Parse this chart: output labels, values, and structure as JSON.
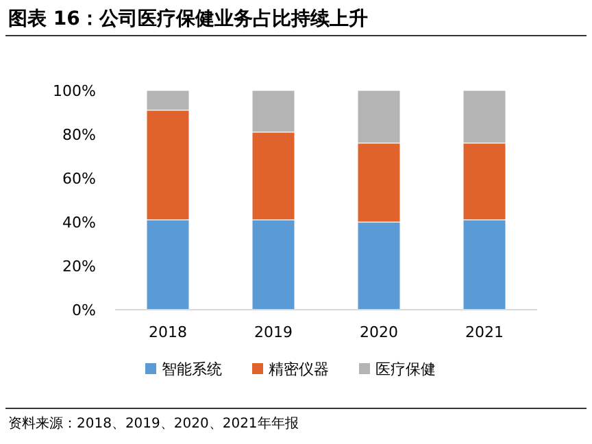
{
  "chart_data": {
    "type": "bar",
    "stacked": true,
    "title": "图表 16：公司医疗保健业务占比持续上升",
    "categories": [
      "2018",
      "2019",
      "2020",
      "2021"
    ],
    "series": [
      {
        "name": "智能系统",
        "color": "#5b9bd5",
        "values": [
          41,
          41,
          40,
          41
        ]
      },
      {
        "name": "精密仪器",
        "color": "#e0622c",
        "values": [
          50,
          40,
          36,
          35
        ]
      },
      {
        "name": "医疗保健",
        "color": "#b4b4b4",
        "values": [
          9,
          19,
          24,
          24
        ]
      }
    ],
    "ylim": [
      0,
      100
    ],
    "yticks": [
      {
        "value": 0,
        "label": "0%"
      },
      {
        "value": 20,
        "label": "20%"
      },
      {
        "value": 40,
        "label": "40%"
      },
      {
        "value": 60,
        "label": "60%"
      },
      {
        "value": 80,
        "label": "80%"
      },
      {
        "value": 100,
        "label": "100%"
      }
    ],
    "legend": "bottom",
    "annotations": [
      "资料来源：2018、2019、2020、2021年年报"
    ]
  }
}
